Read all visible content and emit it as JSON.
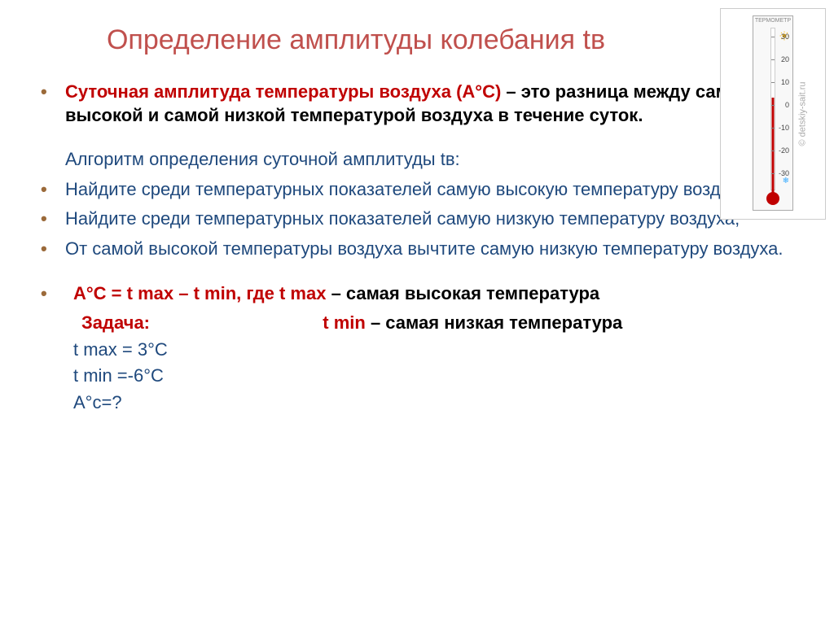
{
  "title": "Определение амплитуды колебания tв",
  "definition": {
    "term": "Суточная амплитуда температуры воздуха (А°С)",
    "body": " – это разница между самой высокой и самой низкой температурой воздуха в течение суток."
  },
  "algorithm_heading": "Алгоритм определения суточной амплитуды tв:",
  "steps": [
    "Найдите среди температурных показателей самую высокую температуру воздуха;",
    "Найдите среди температурных показателей самую низкую температуру воздуха;",
    "От самой высокой температуры воздуха вычтите самую низкую температуру воздуха."
  ],
  "formula": {
    "lhs": "А°С = t  max – t min, где  t  max",
    "rhs": " – самая высокая температура"
  },
  "task_label": "Задача:",
  "tmin_label": "t min",
  "tmin_rhs": " – самая низкая температура",
  "values": {
    "tmax": "t max = 3°С",
    "tmin": "t  min =-6°С",
    "ac": "А°с=?"
  },
  "thermometer": {
    "label": "ТЕРМОМЕТР",
    "ticks": [
      {
        "label": "30",
        "pos": 20
      },
      {
        "label": "20",
        "pos": 48
      },
      {
        "label": "10",
        "pos": 76
      },
      {
        "label": "0",
        "pos": 104
      },
      {
        "label": "-10",
        "pos": 132
      },
      {
        "label": "-20",
        "pos": 160
      },
      {
        "label": "-30",
        "pos": 188
      }
    ],
    "copyright": "© detskiy-sait.ru"
  },
  "colors": {
    "title": "#c0504d",
    "red": "#c00000",
    "blue": "#1f497d",
    "bullet": "#9b6a3a"
  }
}
